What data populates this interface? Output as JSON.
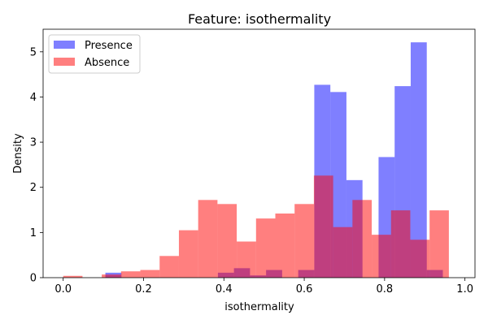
{
  "chart_data": {
    "type": "histogram",
    "title": "Feature: isothermality",
    "xlabel": "isothermality",
    "ylabel": "Density",
    "xlim": [
      -0.05,
      1.025
    ],
    "ylim": [
      0,
      5.5
    ],
    "xticks": [
      0.0,
      0.2,
      0.4,
      0.6,
      0.8,
      1.0
    ],
    "xtick_labels": [
      "0.0",
      "0.2",
      "0.4",
      "0.6",
      "0.8",
      "1.0"
    ],
    "yticks": [
      0,
      1,
      2,
      3,
      4,
      5
    ],
    "ytick_labels": [
      "0",
      "1",
      "2",
      "3",
      "4",
      "5"
    ],
    "legend_position": "upper-left",
    "grid": false,
    "series": [
      {
        "name": "Presence",
        "color": "#0000ff",
        "alpha": 0.5,
        "bin_width": 0.04,
        "bins": [
          {
            "x0": 0.105,
            "value": 0.11
          },
          {
            "x0": 0.145,
            "value": 0
          },
          {
            "x0": 0.185,
            "value": 0
          },
          {
            "x0": 0.225,
            "value": 0
          },
          {
            "x0": 0.265,
            "value": 0
          },
          {
            "x0": 0.305,
            "value": 0
          },
          {
            "x0": 0.345,
            "value": 0
          },
          {
            "x0": 0.385,
            "value": 0.11
          },
          {
            "x0": 0.425,
            "value": 0.21
          },
          {
            "x0": 0.465,
            "value": 0.05
          },
          {
            "x0": 0.505,
            "value": 0.17
          },
          {
            "x0": 0.545,
            "value": 0
          },
          {
            "x0": 0.585,
            "value": 0.17
          },
          {
            "x0": 0.625,
            "value": 4.27
          },
          {
            "x0": 0.665,
            "value": 4.11
          },
          {
            "x0": 0.705,
            "value": 2.16
          },
          {
            "x0": 0.745,
            "value": 0
          },
          {
            "x0": 0.785,
            "value": 2.67
          },
          {
            "x0": 0.825,
            "value": 4.24
          },
          {
            "x0": 0.865,
            "value": 5.21
          },
          {
            "x0": 0.905,
            "value": 0.17
          }
        ]
      },
      {
        "name": "Absence",
        "color": "#ff0000",
        "alpha": 0.5,
        "bin_width": 0.048,
        "bins": [
          {
            "x0": 0.0,
            "value": 0.04
          },
          {
            "x0": 0.048,
            "value": 0
          },
          {
            "x0": 0.096,
            "value": 0.07
          },
          {
            "x0": 0.144,
            "value": 0.14
          },
          {
            "x0": 0.192,
            "value": 0.17
          },
          {
            "x0": 0.24,
            "value": 0.48
          },
          {
            "x0": 0.288,
            "value": 1.05
          },
          {
            "x0": 0.336,
            "value": 1.72
          },
          {
            "x0": 0.384,
            "value": 1.63
          },
          {
            "x0": 0.432,
            "value": 0.8
          },
          {
            "x0": 0.48,
            "value": 1.31
          },
          {
            "x0": 0.528,
            "value": 1.42
          },
          {
            "x0": 0.576,
            "value": 1.63
          },
          {
            "x0": 0.624,
            "value": 2.26
          },
          {
            "x0": 0.672,
            "value": 1.12
          },
          {
            "x0": 0.72,
            "value": 1.72
          },
          {
            "x0": 0.768,
            "value": 0.95
          },
          {
            "x0": 0.816,
            "value": 1.49
          },
          {
            "x0": 0.864,
            "value": 0.84
          },
          {
            "x0": 0.912,
            "value": 1.49
          }
        ]
      }
    ]
  }
}
